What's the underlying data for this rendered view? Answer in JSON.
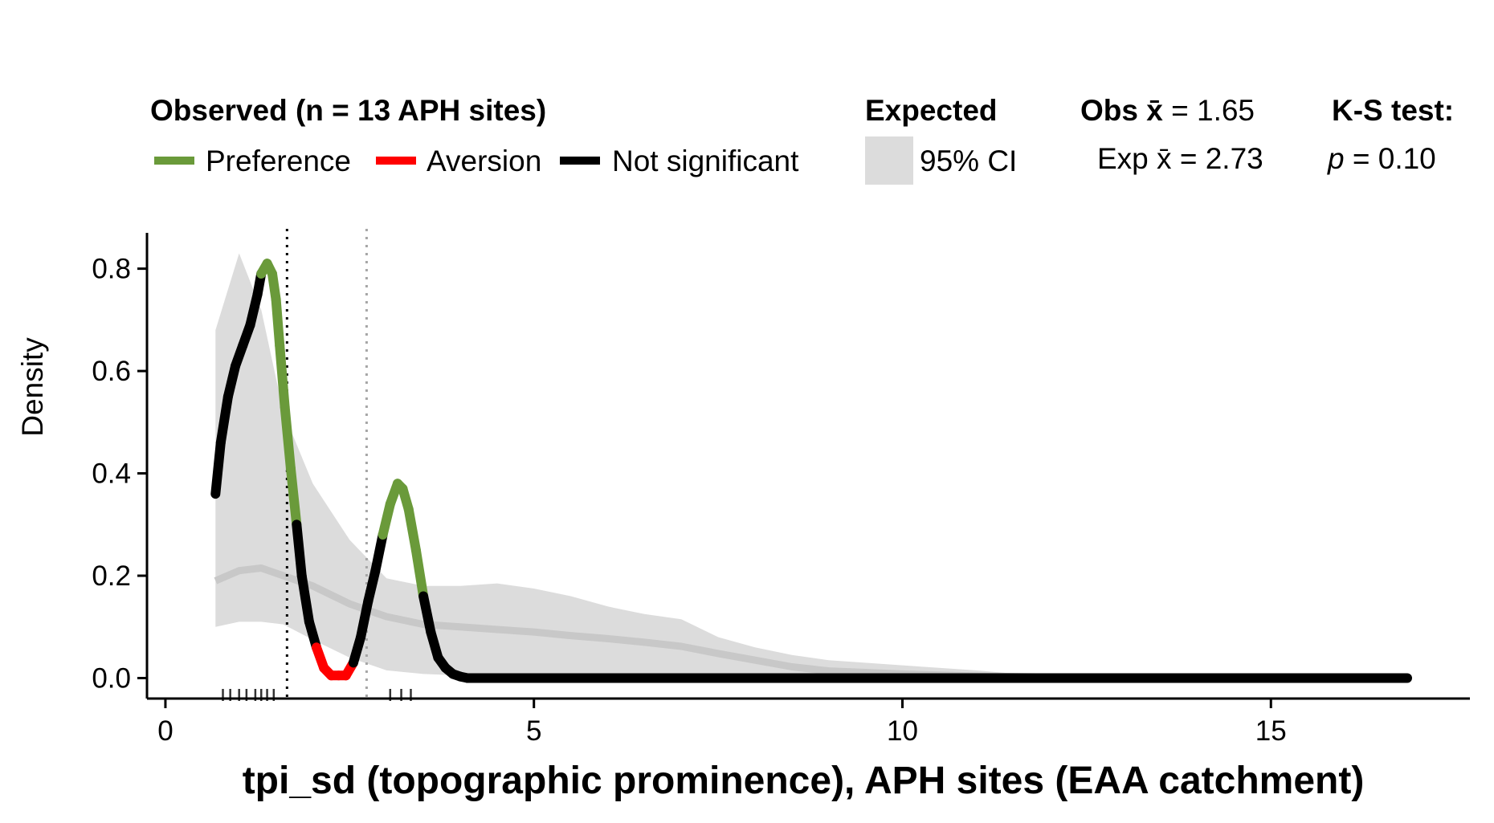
{
  "legend": {
    "observed_title": "Observed (n = 13 APH sites)",
    "preference_label": "Preference",
    "aversion_label": "Aversion",
    "not_significant_label": "Not significant",
    "expected_title": "Expected",
    "ci_label": "95% CI",
    "obs_mean_label": "Obs x̄",
    "obs_mean_value": " = 1.65",
    "exp_mean_label": "Exp x̄",
    "exp_mean_value": " = 2.73",
    "ks_title": "K-S test:",
    "ks_p_label": "p",
    "ks_p_value": " = 0.10"
  },
  "colors": {
    "preference": "#6a9a3a",
    "aversion": "#ff0000",
    "not_significant": "#000000",
    "ci_band": "#dcdcdc",
    "expected_line": "#c8c8c8",
    "obs_mean_line": "#000000",
    "exp_mean_line": "#a6a6a6"
  },
  "chart_data": {
    "type": "line",
    "title": "",
    "xlabel": "tpi_sd (topographic prominence), APH sites (EAA catchment)",
    "ylabel": "Density",
    "xlim": [
      -0.25,
      17.7
    ],
    "ylim": [
      -0.04,
      0.87
    ],
    "xticks": [
      0,
      5,
      10,
      15
    ],
    "xtick_labels": [
      "0",
      "5",
      "10",
      "15"
    ],
    "yticks": [
      0.0,
      0.2,
      0.4,
      0.6,
      0.8
    ],
    "ytick_labels": [
      "0.0",
      "0.2",
      "0.4",
      "0.6",
      "0.8"
    ],
    "obs_mean": 1.65,
    "exp_mean": 2.73,
    "ks_p": 0.1,
    "n_sites": 13,
    "rug": [
      0.78,
      0.88,
      1.0,
      1.1,
      1.22,
      1.3,
      1.38,
      1.47,
      3.05,
      3.2,
      3.33
    ],
    "observed": {
      "x": [
        0.68,
        0.75,
        0.85,
        0.95,
        1.05,
        1.15,
        1.25,
        1.3,
        1.38,
        1.45,
        1.5,
        1.55,
        1.62,
        1.7,
        1.78,
        1.85,
        1.95,
        2.05,
        2.15,
        2.25,
        2.35,
        2.45,
        2.55,
        2.65,
        2.75,
        2.85,
        2.95,
        3.05,
        3.15,
        3.22,
        3.3,
        3.4,
        3.5,
        3.6,
        3.7,
        3.8,
        3.9,
        4.0,
        4.1,
        4.5,
        6.0,
        8.0,
        10.0,
        12.0,
        14.0,
        16.0,
        16.85
      ],
      "y": [
        0.36,
        0.46,
        0.55,
        0.61,
        0.65,
        0.69,
        0.75,
        0.79,
        0.81,
        0.79,
        0.74,
        0.65,
        0.53,
        0.41,
        0.3,
        0.2,
        0.11,
        0.06,
        0.02,
        0.005,
        0.005,
        0.005,
        0.03,
        0.08,
        0.15,
        0.21,
        0.28,
        0.34,
        0.38,
        0.37,
        0.33,
        0.25,
        0.16,
        0.09,
        0.04,
        0.02,
        0.008,
        0.003,
        0.0,
        0.0,
        0.0,
        0.0,
        0.0,
        0.0,
        0.0,
        0.0,
        0.0
      ],
      "status": [
        "ns",
        "ns",
        "ns",
        "ns",
        "ns",
        "ns",
        "ns",
        "pref",
        "pref",
        "pref",
        "pref",
        "pref",
        "pref",
        "pref",
        "ns",
        "ns",
        "ns",
        "avers",
        "avers",
        "avers",
        "avers",
        "avers",
        "ns",
        "ns",
        "ns",
        "ns",
        "pref",
        "pref",
        "pref",
        "pref",
        "pref",
        "pref",
        "ns",
        "ns",
        "ns",
        "ns",
        "ns",
        "ns",
        "ns",
        "ns",
        "ns",
        "ns",
        "ns",
        "ns",
        "ns",
        "ns",
        "ns"
      ]
    },
    "expected": {
      "x": [
        0.68,
        1.0,
        1.3,
        1.6,
        2.0,
        2.5,
        3.0,
        3.5,
        4.0,
        4.5,
        5.0,
        5.5,
        6.0,
        6.5,
        7.0,
        7.5,
        8.0,
        8.5,
        9.0,
        10.0,
        11.0,
        12.0,
        14.0,
        16.0,
        16.85
      ],
      "mean": [
        0.19,
        0.21,
        0.215,
        0.2,
        0.18,
        0.145,
        0.12,
        0.105,
        0.1,
        0.095,
        0.09,
        0.083,
        0.077,
        0.07,
        0.062,
        0.048,
        0.035,
        0.022,
        0.014,
        0.008,
        0.004,
        0.002,
        0.0,
        0.0,
        0.0
      ],
      "ci_low": [
        0.1,
        0.11,
        0.11,
        0.105,
        0.075,
        0.04,
        0.015,
        0.008,
        0.005,
        0.005,
        0.004,
        0.003,
        0.002,
        0.002,
        0.001,
        0.001,
        0.0,
        0.0,
        0.0,
        0.0,
        0.0,
        0.0,
        0.0,
        0.0,
        0.0
      ],
      "ci_high": [
        0.68,
        0.83,
        0.72,
        0.52,
        0.38,
        0.27,
        0.195,
        0.18,
        0.18,
        0.185,
        0.175,
        0.16,
        0.14,
        0.125,
        0.115,
        0.08,
        0.06,
        0.045,
        0.035,
        0.025,
        0.015,
        0.003,
        0.0,
        0.0,
        0.0
      ]
    }
  }
}
